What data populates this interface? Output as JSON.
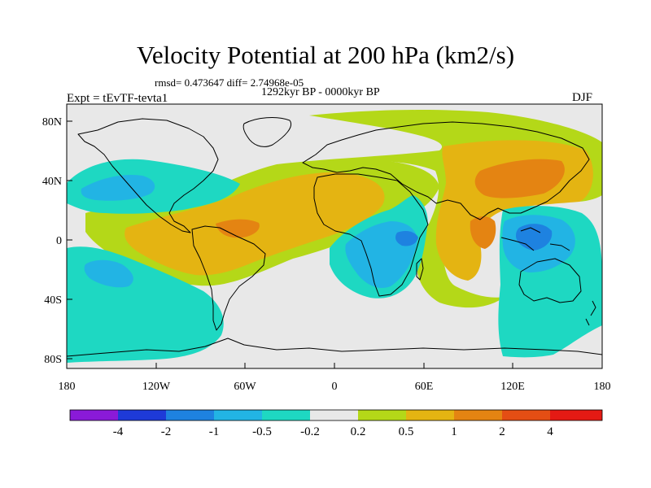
{
  "title": "Velocity Potential at 200 hPa (km2/s)",
  "stats": {
    "rmsd_label": "rmsd=",
    "rmsd": "0.473647",
    "diff_label": "diff=",
    "diff": "2.74968e-05"
  },
  "period": "1292kyr BP - 0000kyr BP",
  "experiment": "Expt = tEvTF-tevta1",
  "season": "DJF",
  "x_ticks": [
    "180",
    "120W",
    "60W",
    "0",
    "60E",
    "120E",
    "180"
  ],
  "y_ticks": [
    "80N",
    "40N",
    "0",
    "40S",
    "80S"
  ],
  "colorbar": {
    "labels": [
      "-4",
      "-2",
      "-1",
      "-0.5",
      "-0.2",
      "0.2",
      "0.5",
      "1",
      "2",
      "4"
    ],
    "colors": [
      "#8a1ad8",
      "#1e3ad8",
      "#1e82e0",
      "#22b4e4",
      "#1ed8c2",
      "#e8e8e8",
      "#b4d818",
      "#e4b412",
      "#e48412",
      "#e44e14",
      "#e41a14"
    ]
  },
  "colors": {
    "neutral": "#e8e8e8",
    "teal": "#1ed8c2",
    "lightblue": "#22b4e4",
    "blue": "#1e82e0",
    "green": "#b4d818",
    "yellow": "#e4b412",
    "orange": "#e48412",
    "red": "#e44e14"
  }
}
